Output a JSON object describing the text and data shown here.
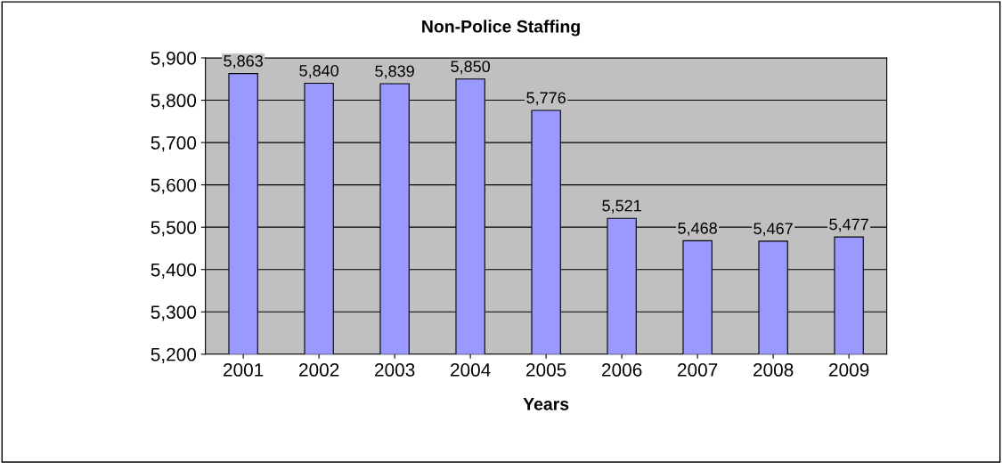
{
  "chart_data": {
    "type": "bar",
    "title": "Non-Police Staffing",
    "xlabel": "Years",
    "categories": [
      "2001",
      "2002",
      "2003",
      "2004",
      "2005",
      "2006",
      "2007",
      "2008",
      "2009"
    ],
    "values": [
      5863,
      5840,
      5839,
      5850,
      5776,
      5521,
      5468,
      5467,
      5477
    ],
    "value_labels": [
      "5,863",
      "5,840",
      "5,839",
      "5,850",
      "5,776",
      "5,521",
      "5,468",
      "5,467",
      "5,477"
    ],
    "color": "#9999ff",
    "ylim": [
      5200,
      5900
    ],
    "yticks": [
      {
        "value": 5200,
        "label": "5,200"
      },
      {
        "value": 5300,
        "label": "5,300"
      },
      {
        "value": 5400,
        "label": "5,400"
      },
      {
        "value": 5500,
        "label": "5,500"
      },
      {
        "value": 5600,
        "label": "5,600"
      },
      {
        "value": 5700,
        "label": "5,700"
      },
      {
        "value": 5800,
        "label": "5,800"
      },
      {
        "value": 5900,
        "label": "5,900"
      }
    ],
    "grid": "y"
  }
}
